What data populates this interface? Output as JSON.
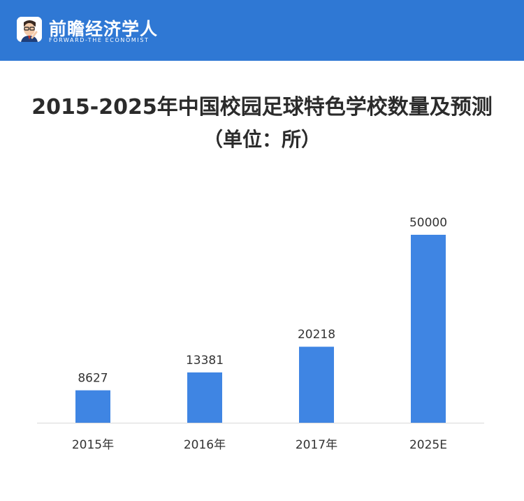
{
  "brand": {
    "name": "前瞻经济学人",
    "subtitle": "FORWARD-THE ECONOMIST",
    "logo_icon": "economist-avatar-icon",
    "bar_color": "#2f78d4"
  },
  "chart_data": {
    "type": "bar",
    "title": "2015-2025年中国校园足球特色学校数量及预测",
    "subtitle": "（单位：所）",
    "categories": [
      "2015年",
      "2016年",
      "2017年",
      "2025E"
    ],
    "values": [
      8627,
      13381,
      20218,
      50000
    ],
    "data_labels": [
      "8627",
      "13381",
      "20218",
      "50000"
    ],
    "ylim": [
      0,
      50000
    ],
    "grid": false,
    "legend": "none",
    "bar_color": "#3f85e3"
  }
}
